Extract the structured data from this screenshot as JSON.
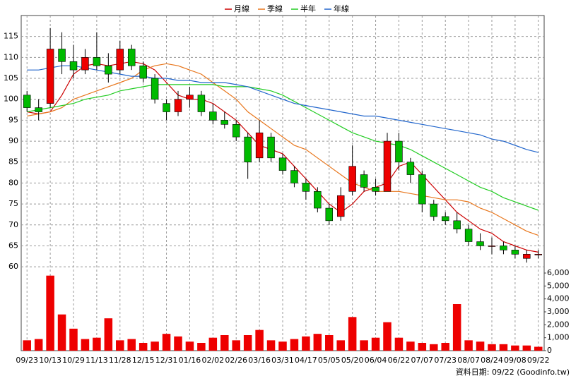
{
  "chart_data": {
    "type": "candlestick",
    "legend_position": "top",
    "grid": true,
    "categories": [
      "09/23",
      null,
      "10/13",
      null,
      "10/29",
      null,
      "11/13",
      null,
      "11/28",
      null,
      "12/15",
      null,
      "12/31",
      null,
      "01/16",
      null,
      "02/02",
      null,
      "02/26",
      null,
      "03/16",
      null,
      "03/31",
      null,
      "04/17",
      null,
      "05/05",
      null,
      "05/20",
      null,
      "06/04",
      null,
      "06/22",
      null,
      "07/07",
      null,
      "07/23",
      null,
      "08/07",
      null,
      "08/24",
      null,
      "09/08",
      null,
      "09/22"
    ],
    "up_color": "#ee0000",
    "down_color": "#00bb00",
    "ohlc": [
      [
        101,
        102,
        97,
        98
      ],
      [
        98,
        100,
        95,
        97
      ],
      [
        99,
        117,
        98,
        112
      ],
      [
        112,
        116,
        106,
        109
      ],
      [
        109,
        113,
        105,
        107
      ],
      [
        107,
        112,
        106,
        110
      ],
      [
        110,
        116,
        107,
        108
      ],
      [
        108,
        111,
        104,
        106
      ],
      [
        107,
        114,
        106,
        112
      ],
      [
        112,
        113,
        107,
        108
      ],
      [
        108,
        109,
        104,
        105
      ],
      [
        105,
        106,
        99,
        100
      ],
      [
        99,
        100,
        95,
        97
      ],
      [
        97,
        102,
        96,
        100
      ],
      [
        100,
        103,
        98,
        101
      ],
      [
        101,
        102,
        96,
        97
      ],
      [
        97,
        99,
        94,
        95
      ],
      [
        95,
        97,
        93,
        94
      ],
      [
        94,
        95,
        90,
        91
      ],
      [
        91,
        92,
        81,
        85
      ],
      [
        86,
        95,
        85,
        92
      ],
      [
        91,
        92,
        85,
        86
      ],
      [
        86,
        87,
        82,
        83
      ],
      [
        83,
        84,
        79,
        80
      ],
      [
        80,
        81,
        76,
        78
      ],
      [
        78,
        79,
        73,
        74
      ],
      [
        74,
        75,
        70,
        71
      ],
      [
        72,
        79,
        71,
        77
      ],
      [
        78,
        89,
        77,
        84
      ],
      [
        82,
        83,
        78,
        79
      ],
      [
        79,
        81,
        77,
        78
      ],
      [
        78,
        92,
        78,
        90
      ],
      [
        90,
        92,
        83,
        85
      ],
      [
        85,
        86,
        80,
        82
      ],
      [
        82,
        83,
        73,
        75
      ],
      [
        75,
        76,
        71,
        72
      ],
      [
        72,
        73,
        70,
        71
      ],
      [
        71,
        73,
        68,
        69
      ],
      [
        69,
        70,
        65,
        66
      ],
      [
        66,
        68,
        64,
        65
      ],
      [
        65,
        67,
        63,
        65
      ],
      [
        65,
        66,
        63,
        64
      ],
      [
        64,
        65,
        62,
        63
      ],
      [
        62,
        64,
        61,
        63
      ],
      [
        63,
        64,
        62,
        63
      ]
    ],
    "series": [
      {
        "name": "月線",
        "color": "#cc0000",
        "values": [
          97,
          96.5,
          97,
          101,
          106,
          108,
          108.5,
          108,
          108.5,
          109,
          108.5,
          107,
          104,
          101,
          100,
          100,
          99,
          97,
          95,
          92,
          89,
          88,
          87,
          84,
          81,
          78,
          75,
          73,
          75,
          78,
          79,
          80,
          84,
          85,
          82,
          79,
          76,
          73,
          71,
          69,
          68,
          66,
          65,
          64,
          63.5
        ]
      },
      {
        "name": "季線",
        "color": "#e8761c",
        "values": [
          96,
          96.5,
          97,
          98,
          100,
          101,
          102,
          103,
          104,
          105,
          107,
          108,
          108.5,
          108,
          107,
          106,
          104,
          102,
          100,
          97,
          95,
          93,
          91,
          89,
          88,
          86,
          84,
          82,
          80,
          79,
          78,
          78,
          78,
          77.5,
          77,
          76.5,
          76,
          76,
          75.5,
          74,
          73,
          71.5,
          70,
          68.5,
          67.5
        ]
      },
      {
        "name": "半年",
        "color": "#22cc22",
        "values": [
          97,
          97.5,
          98,
          98.5,
          99,
          100,
          100.5,
          101,
          102,
          102.5,
          103,
          103.5,
          103.5,
          103.5,
          103.5,
          103.5,
          103.5,
          103,
          103,
          103,
          102.5,
          102,
          101,
          99.5,
          98,
          96.5,
          95,
          93.5,
          92,
          91,
          90,
          89.5,
          89,
          88,
          86.5,
          85,
          83.5,
          82,
          80.5,
          79,
          78,
          76.5,
          75.5,
          74.5,
          73.5
        ]
      },
      {
        "name": "年線",
        "color": "#2266cc",
        "values": [
          107,
          107,
          107.5,
          108,
          108,
          107.5,
          107,
          106.5,
          106,
          105.5,
          105.5,
          105,
          105,
          104.5,
          104.5,
          104,
          104,
          104,
          103.5,
          103,
          102,
          101,
          100,
          99,
          98.5,
          98,
          97.5,
          97,
          96.5,
          96,
          96,
          95.5,
          95,
          94.5,
          94,
          93.5,
          93,
          92.5,
          92,
          91.5,
          90.5,
          90,
          89,
          88,
          87.3
        ]
      }
    ],
    "ylim": [
      58,
      120
    ],
    "yticks": [
      60,
      65,
      70,
      75,
      80,
      85,
      90,
      95,
      100,
      105,
      110,
      115
    ],
    "volume": {
      "color": "#ee0000",
      "ylim": [
        0,
        6000
      ],
      "yticks": [
        0,
        {
          "value": 1000,
          "label": "1,000"
        },
        {
          "value": 2000,
          "label": "2,000"
        },
        {
          "value": 3000,
          "label": "3,000"
        },
        {
          "value": 4000,
          "label": "4,000"
        },
        {
          "value": 5000,
          "label": "5,000"
        },
        {
          "value": 6000,
          "label": "6,000"
        }
      ],
      "values": [
        800,
        900,
        5800,
        2800,
        1700,
        900,
        1000,
        2500,
        800,
        900,
        600,
        700,
        1300,
        1100,
        700,
        600,
        1000,
        1200,
        800,
        1200,
        1600,
        800,
        700,
        900,
        1100,
        1300,
        1200,
        800,
        2600,
        800,
        1000,
        2200,
        1000,
        700,
        600,
        500,
        600,
        3600,
        800,
        700,
        500,
        500,
        400,
        400,
        300
      ]
    },
    "source": "資料日期: 09/22 (Goodinfo.tw)"
  }
}
